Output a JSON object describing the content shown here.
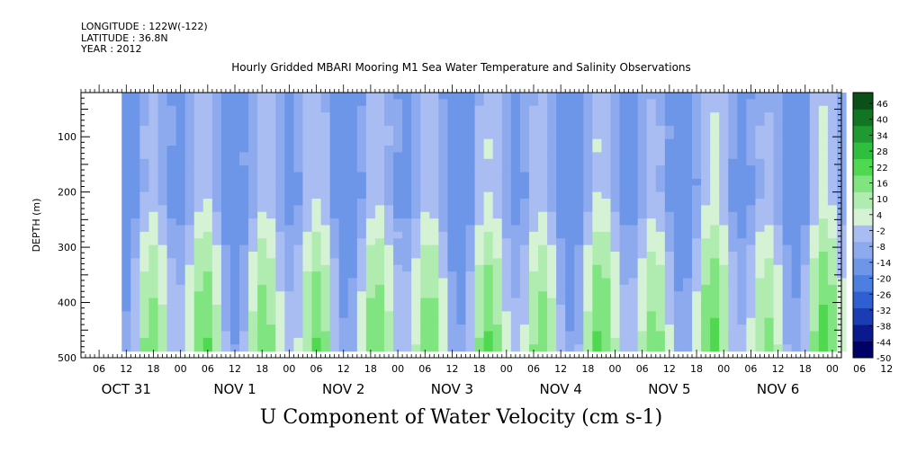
{
  "meta": {
    "longitude": "LONGITUDE : 122W(-122)",
    "latitude": "LATITUDE : 36.8N",
    "year": "YEAR : 2012"
  },
  "title": "Hourly Gridded MBARI Mooring M1 Sea Water Temperature and Salinity Observations",
  "bottom_title": "U Component of Water Velocity (cm s-1)",
  "chart_data": {
    "type": "heatmap",
    "title": "Hourly Gridded MBARI Mooring M1 Sea Water Temperature and Salinity Observations",
    "xlabel": "",
    "ylabel": "DEPTH (m)",
    "colorbar_label": "U Component of Water Velocity (cm s-1)",
    "ylim": [
      500,
      20
    ],
    "y_ticks": [
      100,
      200,
      300,
      400,
      500
    ],
    "x_hour_labels": [
      "06",
      "12",
      "18",
      "00",
      "06",
      "12",
      "18",
      "00",
      "06",
      "12",
      "18",
      "00",
      "06",
      "12",
      "18",
      "00",
      "06",
      "12",
      "18",
      "00",
      "06",
      "12",
      "18",
      "00",
      "06",
      "12",
      "18",
      "00",
      "06",
      "12",
      "18",
      "00"
    ],
    "x_day_labels": [
      "OCT 31",
      "NOV  1",
      "NOV  2",
      "NOV  3",
      "NOV  4",
      "NOV  5",
      "NOV  6"
    ],
    "x_start": "2012-10-31 02:00",
    "x_end": "2012-11-07 02:00",
    "data_start": "2012-10-31 11:00",
    "depth_range": [
      20,
      485
    ],
    "colorbar_levels": [
      -50,
      -44,
      -38,
      -32,
      -26,
      -20,
      -14,
      -8,
      -2,
      4,
      10,
      16,
      22,
      28,
      34,
      40,
      46
    ],
    "colorbar_label_ticks": [
      "46",
      "40",
      "34",
      "28",
      "22",
      "16",
      "10",
      "4",
      "-2",
      "-8",
      "-14",
      "-20",
      "-26",
      "-32",
      "-38",
      "-44",
      "-50"
    ],
    "value_range_shown": [
      -20,
      22
    ],
    "pattern": "vertical bands alternating between light blue (negative, about -8 to -20 cm/s, strongest near 150-250 m) and light-to-medium green (positive, about 4 to 22 cm/s, strongest near 300-480 m), changing on roughly a 12-hour cycle"
  }
}
